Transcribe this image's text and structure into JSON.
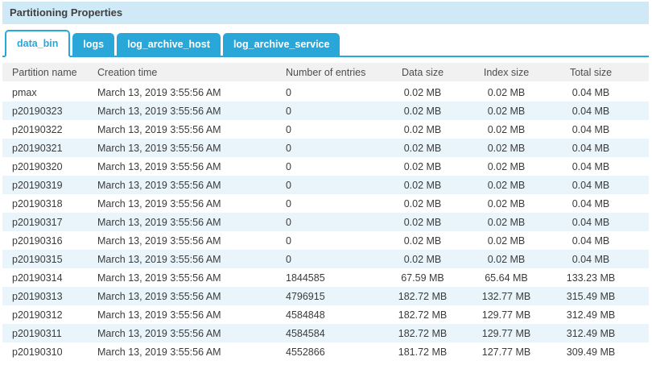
{
  "panel": {
    "title": "Partitioning Properties"
  },
  "tabs": [
    {
      "label": "data_bin",
      "active": true
    },
    {
      "label": "logs",
      "active": false
    },
    {
      "label": "log_archive_host",
      "active": false
    },
    {
      "label": "log_archive_service",
      "active": false
    }
  ],
  "table": {
    "columns": [
      "Partition name",
      "Creation time",
      "Number of entries",
      "Data size",
      "Index size",
      "Total size"
    ],
    "column_keys": [
      "partition-name",
      "creation-time",
      "number-of-entries",
      "data-size",
      "index-size",
      "total-size"
    ],
    "rows": [
      [
        "pmax",
        "March 13, 2019 3:55:56 AM",
        "0",
        "0.02 MB",
        "0.02 MB",
        "0.04 MB"
      ],
      [
        "p20190323",
        "March 13, 2019 3:55:56 AM",
        "0",
        "0.02 MB",
        "0.02 MB",
        "0.04 MB"
      ],
      [
        "p20190322",
        "March 13, 2019 3:55:56 AM",
        "0",
        "0.02 MB",
        "0.02 MB",
        "0.04 MB"
      ],
      [
        "p20190321",
        "March 13, 2019 3:55:56 AM",
        "0",
        "0.02 MB",
        "0.02 MB",
        "0.04 MB"
      ],
      [
        "p20190320",
        "March 13, 2019 3:55:56 AM",
        "0",
        "0.02 MB",
        "0.02 MB",
        "0.04 MB"
      ],
      [
        "p20190319",
        "March 13, 2019 3:55:56 AM",
        "0",
        "0.02 MB",
        "0.02 MB",
        "0.04 MB"
      ],
      [
        "p20190318",
        "March 13, 2019 3:55:56 AM",
        "0",
        "0.02 MB",
        "0.02 MB",
        "0.04 MB"
      ],
      [
        "p20190317",
        "March 13, 2019 3:55:56 AM",
        "0",
        "0.02 MB",
        "0.02 MB",
        "0.04 MB"
      ],
      [
        "p20190316",
        "March 13, 2019 3:55:56 AM",
        "0",
        "0.02 MB",
        "0.02 MB",
        "0.04 MB"
      ],
      [
        "p20190315",
        "March 13, 2019 3:55:56 AM",
        "0",
        "0.02 MB",
        "0.02 MB",
        "0.04 MB"
      ],
      [
        "p20190314",
        "March 13, 2019 3:55:56 AM",
        "1844585",
        "67.59 MB",
        "65.64 MB",
        "133.23 MB"
      ],
      [
        "p20190313",
        "March 13, 2019 3:55:56 AM",
        "4796915",
        "182.72 MB",
        "132.77 MB",
        "315.49 MB"
      ],
      [
        "p20190312",
        "March 13, 2019 3:55:56 AM",
        "4584848",
        "182.72 MB",
        "129.77 MB",
        "312.49 MB"
      ],
      [
        "p20190311",
        "March 13, 2019 3:55:56 AM",
        "4584584",
        "182.72 MB",
        "129.77 MB",
        "312.49 MB"
      ],
      [
        "p20190310",
        "March 13, 2019 3:55:56 AM",
        "4552866",
        "181.72 MB",
        "127.77 MB",
        "309.49 MB"
      ]
    ]
  },
  "colors": {
    "accent_blue": "#2aa7d9",
    "title_bar_bg": "#cfe9f6",
    "header_row_bg": "#f1f1f1",
    "row_alt_bg": "#e9f5fb"
  }
}
